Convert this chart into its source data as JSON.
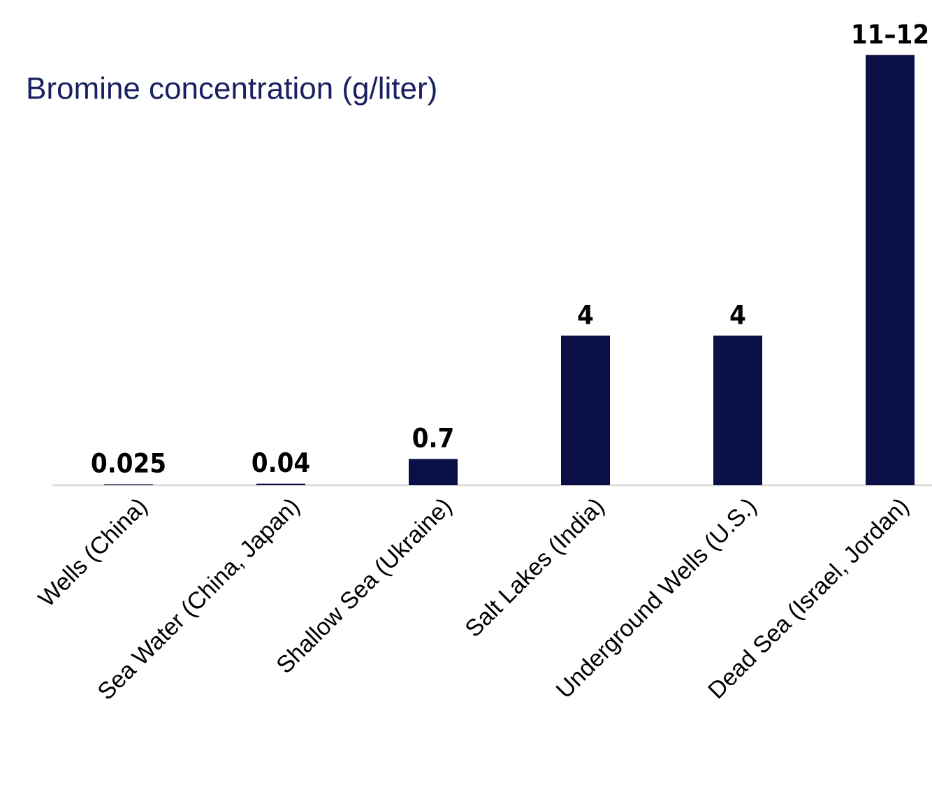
{
  "chart_data": {
    "type": "bar",
    "title": "Bromine concentration (g/liter)",
    "categories": [
      "Wells (China)",
      "Sea Water (China, Japan)",
      "Shallow Sea (Ukraine)",
      "Salt Lakes (India)",
      "Underground Wells (U.S.)",
      "Dead Sea (Israel, Jordan)"
    ],
    "values": [
      0.025,
      0.04,
      0.7,
      4,
      4,
      11.5
    ],
    "value_labels": [
      "0.025",
      "0.04",
      "0.7",
      "4",
      "4",
      "11–12"
    ],
    "color": "#0a1045"
  }
}
